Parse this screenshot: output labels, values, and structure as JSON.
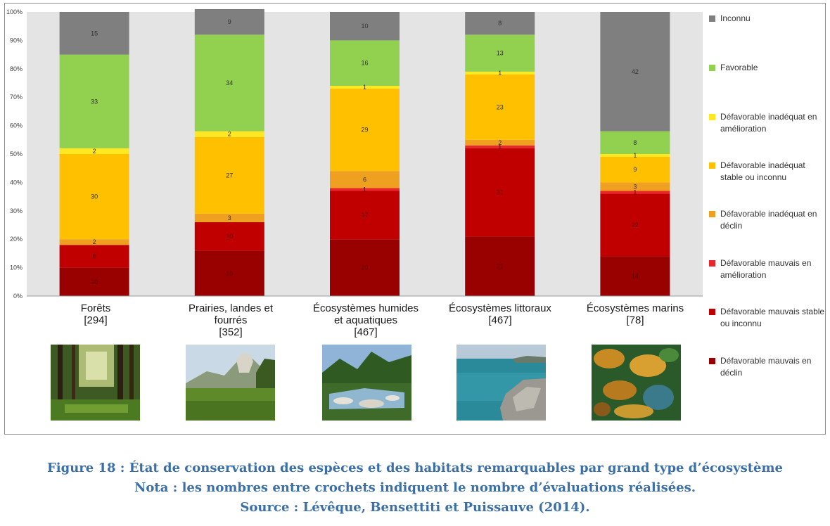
{
  "chart_data": {
    "type": "bar",
    "stacked": true,
    "ylim": [
      0,
      100
    ],
    "yticks": [
      "0%",
      "10%",
      "20%",
      "30%",
      "40%",
      "50%",
      "60%",
      "70%",
      "80%",
      "90%",
      "100%"
    ],
    "grid": false,
    "legend_position": "right",
    "categories": [
      {
        "name": "Forêts",
        "count": "[294]"
      },
      {
        "name": "Prairies, landes et\nfourrés",
        "count": "[352]"
      },
      {
        "name": "Écosystèmes humides\net aquatiques",
        "count": "[467]"
      },
      {
        "name": "Écosystèmes littoraux",
        "count": "[467]"
      },
      {
        "name": "Écosystèmes marins",
        "count": "[78]"
      }
    ],
    "series": [
      {
        "name": "Défavorable mauvais en déclin",
        "color": "#990000",
        "values": [
          10,
          16,
          20,
          21,
          14
        ],
        "labels": [
          "10",
          "16",
          "20",
          "21",
          "14"
        ]
      },
      {
        "name": "Défavorable mauvais stable ou inconnu",
        "color": "#c00000",
        "values": [
          8,
          10,
          17,
          31,
          22
        ],
        "labels": [
          "8",
          "10",
          "17",
          "31",
          "22"
        ]
      },
      {
        "name": "Défavorable mauvais en amélioration",
        "color": "#e8262a",
        "values": [
          0,
          0,
          1,
          1,
          1
        ],
        "labels": [
          "",
          "",
          "1",
          "1",
          "1"
        ]
      },
      {
        "name": "Défavorable inadéquat en déclin",
        "color": "#f0a020",
        "values": [
          2,
          3,
          6,
          2,
          3
        ],
        "labels": [
          "2",
          "3",
          "6",
          "2",
          "3"
        ]
      },
      {
        "name": "Défavorable inadéquat stable ou inconnu",
        "color": "#ffc000",
        "values": [
          30,
          27,
          29,
          23,
          9
        ],
        "labels": [
          "30",
          "27",
          "29",
          "23",
          "9"
        ]
      },
      {
        "name": "Défavorable inadéquat en amélioration",
        "color": "#ffe821",
        "values": [
          2,
          2,
          1,
          1,
          1
        ],
        "labels": [
          "2",
          "2",
          "1",
          "1",
          "1"
        ]
      },
      {
        "name": "Favorable",
        "color": "#92d050",
        "values": [
          33,
          34,
          16,
          13,
          8
        ],
        "labels": [
          "33",
          "34",
          "16",
          "13",
          "8"
        ]
      },
      {
        "name": "Inconnu",
        "color": "#7f7f7f",
        "values": [
          15,
          9,
          10,
          8,
          42
        ],
        "labels": [
          "15",
          "9",
          "10",
          "8",
          "42"
        ]
      }
    ]
  },
  "legend": [
    {
      "label": "Inconnu",
      "color": "#7f7f7f"
    },
    {
      "label": "Favorable",
      "color": "#92d050"
    },
    {
      "label": "Défavorable inadéquat en amélioration",
      "color": "#ffe821"
    },
    {
      "label": "Défavorable inadéquat stable ou inconnu",
      "color": "#ffc000"
    },
    {
      "label": "Défavorable inadéquat en déclin",
      "color": "#f0a020"
    },
    {
      "label": "Défavorable mauvais en amélioration",
      "color": "#e8262a"
    },
    {
      "label": "Défavorable mauvais stable ou inconnu",
      "color": "#c00000"
    },
    {
      "label": "Défavorable mauvais en déclin",
      "color": "#990000"
    }
  ],
  "thumbnails": [
    "forest-photo",
    "meadow-photo",
    "river-photo",
    "coast-photo",
    "reef-photo"
  ],
  "caption": {
    "line1": "Figure 18 : État de conservation des espèces et des habitats remarquables par grand type d’écosystème",
    "line2": "Nota : les nombres entre crochets indiquent le nombre d’évaluations réalisées.",
    "line3": "Source : Lévêque, Bensettiti et Puissauve (2014)."
  },
  "colors": {
    "plot_background": "#e4e4e4",
    "caption": "#3b6fa8"
  }
}
